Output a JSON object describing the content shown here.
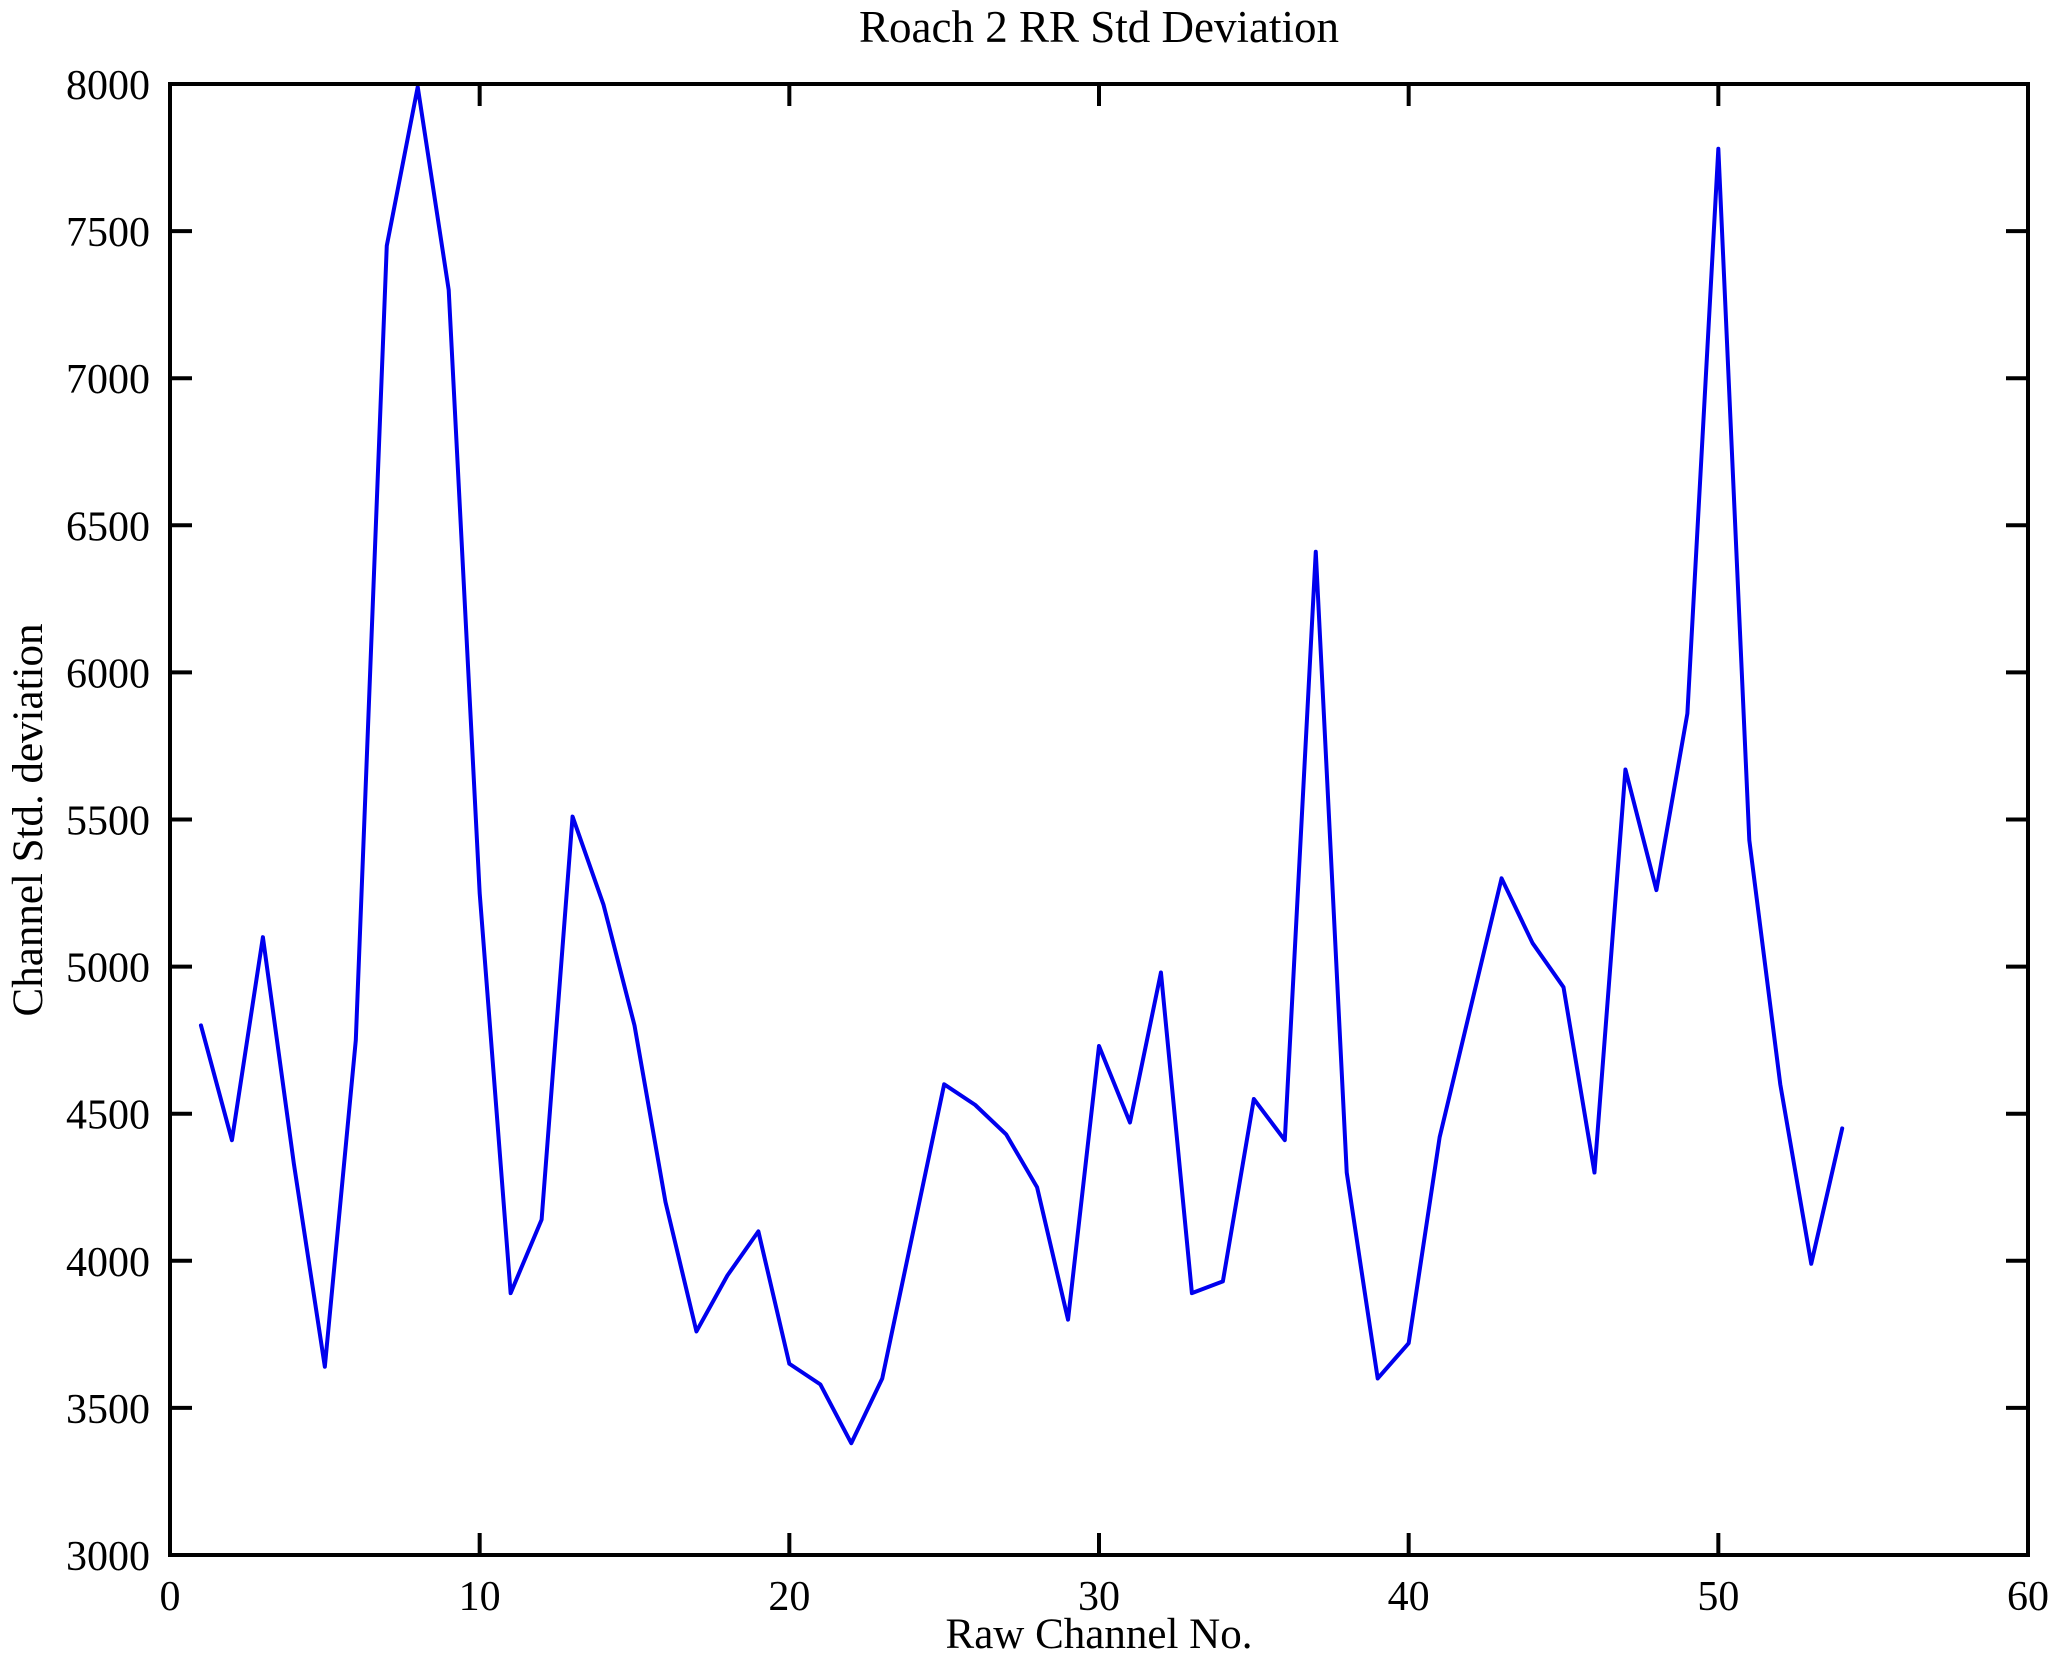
{
  "chart_data": {
    "type": "line",
    "title": "Roach 2 RR Std Deviation",
    "xlabel": "Raw Channel No.",
    "ylabel": "Channel Std. deviation",
    "xlim": [
      0,
      60
    ],
    "ylim": [
      3000,
      8000
    ],
    "x_ticks": [
      0,
      10,
      20,
      30,
      40,
      50,
      60
    ],
    "y_ticks": [
      3000,
      3500,
      4000,
      4500,
      5000,
      5500,
      6000,
      6500,
      7000,
      7500,
      8000
    ],
    "grid": false,
    "legend": null,
    "line_color": "#0000ee",
    "axis_color": "#000000",
    "x": [
      1,
      2,
      3,
      4,
      5,
      6,
      7,
      8,
      9,
      10,
      11,
      12,
      13,
      14,
      15,
      16,
      17,
      18,
      19,
      20,
      21,
      22,
      23,
      24,
      25,
      26,
      27,
      28,
      29,
      30,
      31,
      32,
      33,
      34,
      35,
      36,
      37,
      38,
      39,
      40,
      41,
      42,
      43,
      44,
      45,
      46,
      47,
      48,
      49,
      50,
      51,
      52,
      53,
      54
    ],
    "values": [
      4800,
      4410,
      5100,
      4330,
      3640,
      4750,
      7450,
      7990,
      7300,
      5250,
      3890,
      4140,
      5510,
      5210,
      4800,
      4200,
      3760,
      3950,
      4100,
      3650,
      3580,
      3380,
      3600,
      4100,
      4600,
      4530,
      4430,
      4250,
      3800,
      4730,
      4470,
      4980,
      3890,
      3930,
      4550,
      4410,
      6410,
      4300,
      3600,
      3720,
      4420,
      4860,
      5300,
      5080,
      4930,
      4300,
      5670,
      5260,
      5860,
      7780,
      5430,
      4600,
      3990,
      4450
    ]
  }
}
